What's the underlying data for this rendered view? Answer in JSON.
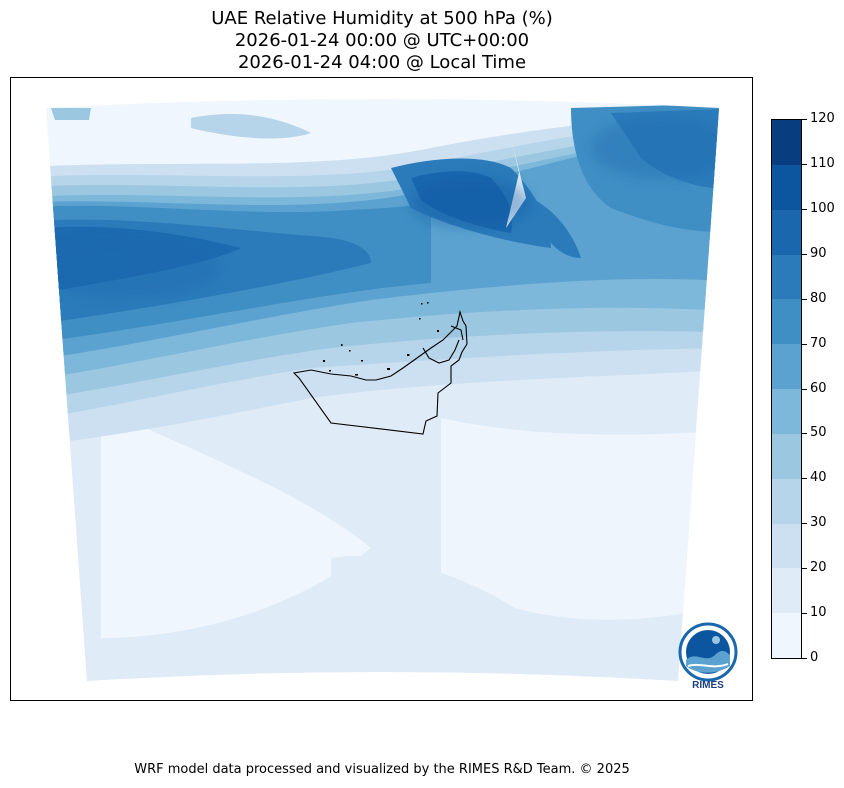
{
  "title": {
    "line1": "UAE Relative Humidity at 500 hPa (%)",
    "line2": "2026-01-24 00:00 @ UTC+00:00",
    "line3": "2026-01-24 04:00 @ Local Time"
  },
  "colorbar": {
    "ticks": [
      "0",
      "10",
      "20",
      "30",
      "40",
      "50",
      "60",
      "70",
      "80",
      "90",
      "100",
      "110",
      "120"
    ],
    "colors": [
      "#f0f6fd",
      "#dfebf7",
      "#cde0f2",
      "#b6d4ea",
      "#9bc7e1",
      "#7db8da",
      "#5ba2d0",
      "#3f8ec4",
      "#2b7bba",
      "#1a67ae",
      "#0c56a0",
      "#083d7f"
    ]
  },
  "logo": {
    "text": "RIMES"
  },
  "footer": {
    "text": "WRF model data processed and visualized by the RIMES R&D Team. © 2025"
  }
}
